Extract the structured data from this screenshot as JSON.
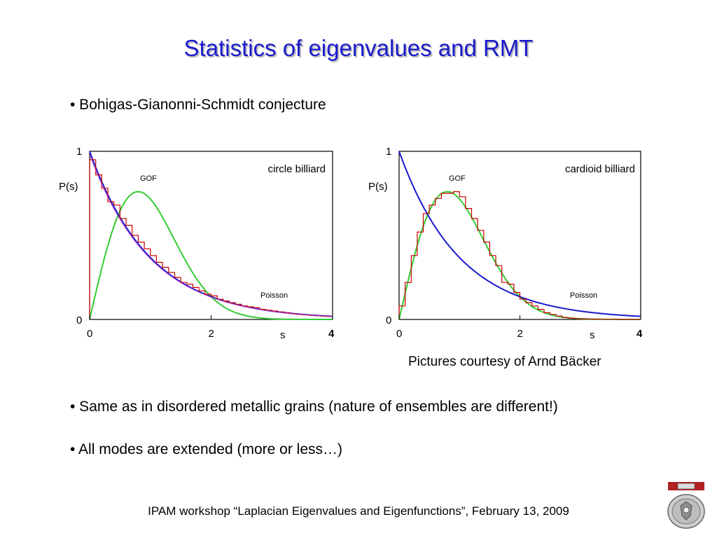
{
  "slide": {
    "title": "Statistics of eigenvalues and RMT",
    "bullets": [
      "• Bohigas-Gianonni-Schmidt conjecture",
      "• Same as in disordered metallic grains (nature of ensembles are different!)",
      "• All modes are extended (more or less…)"
    ],
    "caption": "Pictures courtesy of Arnd Bäcker",
    "footer": "IPAM workshop “Laplacian Eigenvalues and Eigenfunctions”, February 13, 2009",
    "logo": "university-seal-icon"
  },
  "colors": {
    "title": "#1a1acc",
    "poisson": "#1a1acc",
    "gof": "#33cc33",
    "histogram": "#cc0000",
    "histogram_fit": "#cc33cc"
  },
  "chart_data": [
    {
      "type": "line",
      "annotation": "circle billiard",
      "xlabel": "s",
      "ylabel": "P(s)",
      "xlim": [
        0,
        4
      ],
      "ylim": [
        0,
        1
      ],
      "xticks": [
        "0",
        "2",
        "4"
      ],
      "yticks": [
        "0",
        "1"
      ],
      "grid": false,
      "series": [
        {
          "name": "GOF",
          "kind": "curve",
          "formula": "(pi/2) s exp(-pi s^2/4)",
          "color": "#33cc33"
        },
        {
          "name": "Poisson",
          "kind": "curve",
          "formula": "exp(-s)",
          "color": "#1a1acc"
        },
        {
          "kind": "histogram",
          "bin_width": 0.1,
          "color": "#cc0000",
          "values": [
            0.95,
            0.86,
            0.78,
            0.7,
            0.68,
            0.6,
            0.56,
            0.5,
            0.46,
            0.42,
            0.38,
            0.34,
            0.31,
            0.28,
            0.25,
            0.22,
            0.21,
            0.19,
            0.17,
            0.15,
            0.14,
            0.12,
            0.11,
            0.1,
            0.09,
            0.08,
            0.075,
            0.07,
            0.06,
            0.055,
            0.05,
            0.045,
            0.04,
            0.035,
            0.03,
            0.028,
            0.025,
            0.022,
            0.02,
            0.018
          ]
        }
      ]
    },
    {
      "type": "line",
      "annotation": "cardioid billiard",
      "xlabel": "s",
      "ylabel": "P(s)",
      "xlim": [
        0,
        4
      ],
      "ylim": [
        0,
        1
      ],
      "xticks": [
        "0",
        "2",
        "4"
      ],
      "yticks": [
        "0",
        "1"
      ],
      "grid": false,
      "series": [
        {
          "name": "GOF",
          "kind": "curve",
          "formula": "(pi/2) s exp(-pi s^2/4)",
          "color": "#33cc33"
        },
        {
          "name": "Poisson",
          "kind": "curve",
          "formula": "exp(-s)",
          "color": "#1a1acc"
        },
        {
          "kind": "histogram",
          "bin_width": 0.1,
          "color": "#cc0000",
          "values": [
            0.08,
            0.22,
            0.38,
            0.52,
            0.63,
            0.68,
            0.72,
            0.75,
            0.75,
            0.76,
            0.73,
            0.66,
            0.6,
            0.53,
            0.46,
            0.38,
            0.32,
            0.22,
            0.21,
            0.16,
            0.12,
            0.1,
            0.08,
            0.06,
            0.04,
            0.03,
            0.02,
            0.012,
            0.008,
            0.005,
            0.004,
            0.003,
            0.002,
            0.001,
            0.001,
            0.001,
            0.0,
            0.0,
            0.0,
            0.0
          ]
        }
      ]
    }
  ]
}
